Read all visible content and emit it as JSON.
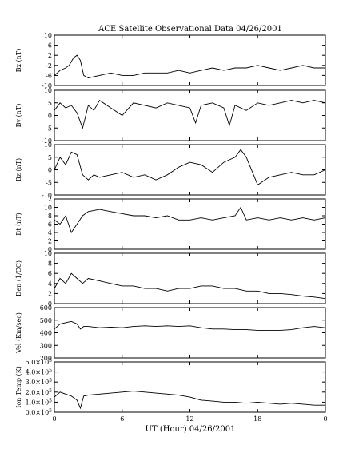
{
  "chart_data": {
    "type": "line",
    "title": "ACE Satellite Observational Data   04/26/2001",
    "xlabel": "UT (Hour)  04/26/2001",
    "x_ticks": [
      "0",
      "6",
      "12",
      "18",
      "0"
    ],
    "xlim": [
      0,
      24
    ],
    "grid": false,
    "panels": [
      {
        "name": "bx",
        "ylabel": "Bx (nT)",
        "ylim": [
          -10,
          10
        ],
        "y_ticks": [
          "10",
          "6",
          "2",
          "-2",
          "-6",
          "-10"
        ],
        "x": [
          0,
          0.5,
          1.0,
          1.3,
          1.7,
          2.0,
          2.3,
          2.6,
          3,
          4,
          5,
          6,
          7,
          8,
          9,
          10,
          11,
          12,
          13,
          14,
          15,
          16,
          17,
          18,
          19,
          20,
          21,
          22,
          23,
          24
        ],
        "values": [
          -6,
          -4,
          -3,
          -2,
          1,
          2,
          0,
          -6,
          -7,
          -6,
          -5,
          -6,
          -6,
          -5,
          -5,
          -5,
          -4,
          -5,
          -4,
          -3,
          -4,
          -3,
          -3,
          -2,
          -3,
          -4,
          -3,
          -2,
          -3,
          -3
        ]
      },
      {
        "name": "by",
        "ylabel": "By (nT)",
        "ylim": [
          -10,
          10
        ],
        "y_ticks": [
          "10",
          "5",
          "0",
          "-5",
          "-10"
        ],
        "x": [
          0,
          0.5,
          1,
          1.5,
          2,
          2.5,
          3,
          3.5,
          4,
          5,
          6,
          7,
          8,
          9,
          10,
          11,
          12,
          12.5,
          13,
          14,
          15,
          15.5,
          16,
          17,
          18,
          19,
          20,
          21,
          22,
          23,
          24
        ],
        "values": [
          2,
          5,
          3,
          4,
          1,
          -5,
          4,
          2,
          6,
          3,
          0,
          5,
          4,
          3,
          5,
          4,
          3,
          -3,
          4,
          5,
          3,
          -4,
          4,
          2,
          5,
          4,
          5,
          6,
          5,
          6,
          5
        ]
      },
      {
        "name": "bz",
        "ylabel": "Bz (nT)",
        "ylim": [
          -10,
          10
        ],
        "y_ticks": [
          "10",
          "5",
          "0",
          "-5",
          "-10"
        ],
        "x": [
          0,
          0.5,
          1,
          1.5,
          2,
          2.5,
          3,
          3.5,
          4,
          5,
          6,
          7,
          8,
          9,
          10,
          11,
          12,
          13,
          14,
          15,
          16,
          16.5,
          17,
          18,
          19,
          20,
          21,
          22,
          23,
          24
        ],
        "values": [
          0,
          5,
          2,
          7,
          6,
          -2,
          -4,
          -2,
          -3,
          -2,
          -1,
          -3,
          -2,
          -4,
          -2,
          1,
          3,
          2,
          -1,
          3,
          5,
          8,
          5,
          -6,
          -3,
          -2,
          -1,
          -2,
          -2,
          0
        ]
      },
      {
        "name": "bt",
        "ylabel": "Bt (nT)",
        "ylim": [
          0,
          12
        ],
        "y_ticks": [
          "12",
          "10",
          "8",
          "6",
          "4",
          "2",
          "0"
        ],
        "x": [
          0,
          0.5,
          1,
          1.5,
          2,
          2.5,
          3,
          4,
          5,
          6,
          7,
          8,
          9,
          10,
          11,
          12,
          13,
          14,
          15,
          16,
          16.5,
          17,
          18,
          19,
          20,
          21,
          22,
          23,
          24
        ],
        "values": [
          7,
          6,
          8,
          4,
          6,
          8,
          9,
          9.5,
          9,
          8.5,
          8,
          8,
          7.5,
          8,
          7,
          7,
          7.5,
          7,
          7.5,
          8,
          10,
          7,
          7.5,
          7,
          7.5,
          7,
          7.5,
          7,
          7.5
        ]
      },
      {
        "name": "den",
        "ylabel": "Den (1/CC)",
        "ylim": [
          0,
          10
        ],
        "y_ticks": [
          "10",
          "8",
          "6",
          "4",
          "2",
          "0"
        ],
        "x": [
          0,
          0.5,
          1,
          1.5,
          2,
          2.5,
          3,
          4,
          5,
          6,
          7,
          8,
          9,
          10,
          11,
          12,
          13,
          14,
          15,
          16,
          17,
          18,
          19,
          20,
          21,
          22,
          23,
          24
        ],
        "values": [
          3,
          5,
          4,
          6,
          5,
          4,
          5,
          4.5,
          4,
          3.5,
          3.5,
          3,
          3,
          2.5,
          3,
          3,
          3.5,
          3.5,
          3,
          3,
          2.5,
          2.5,
          2,
          2,
          1.8,
          1.5,
          1.3,
          1
        ]
      },
      {
        "name": "vel",
        "ylabel": "Vel (Km/sec)",
        "ylim": [
          200,
          600
        ],
        "y_ticks": [
          "600",
          "500",
          "400",
          "300",
          "200"
        ],
        "x": [
          0,
          0.5,
          1,
          1.5,
          2,
          2.3,
          2.6,
          3,
          4,
          5,
          6,
          7,
          8,
          9,
          10,
          11,
          12,
          13,
          14,
          15,
          16,
          17,
          18,
          19,
          20,
          21,
          22,
          23,
          24
        ],
        "values": [
          430,
          470,
          480,
          490,
          470,
          430,
          450,
          450,
          440,
          445,
          440,
          450,
          455,
          450,
          455,
          450,
          455,
          440,
          430,
          430,
          425,
          425,
          420,
          420,
          420,
          425,
          440,
          450,
          440
        ]
      },
      {
        "name": "temp",
        "ylabel": "Ion Temp (K)",
        "ylim": [
          0,
          500000
        ],
        "y_ticks_mantissa": [
          "5.0",
          "4.0",
          "3.0",
          "2.0",
          "1.0",
          "0.0"
        ],
        "y_tick_exponent": "5",
        "x": [
          0,
          0.5,
          1,
          1.5,
          2,
          2.3,
          2.6,
          3,
          4,
          5,
          6,
          7,
          8,
          9,
          10,
          11,
          12,
          13,
          14,
          15,
          16,
          17,
          18,
          19,
          20,
          21,
          22,
          23,
          24
        ],
        "values": [
          150000,
          200000,
          180000,
          160000,
          120000,
          40000,
          160000,
          170000,
          180000,
          190000,
          200000,
          210000,
          200000,
          190000,
          180000,
          170000,
          150000,
          120000,
          110000,
          100000,
          100000,
          90000,
          100000,
          90000,
          80000,
          90000,
          80000,
          70000,
          70000
        ]
      }
    ]
  }
}
